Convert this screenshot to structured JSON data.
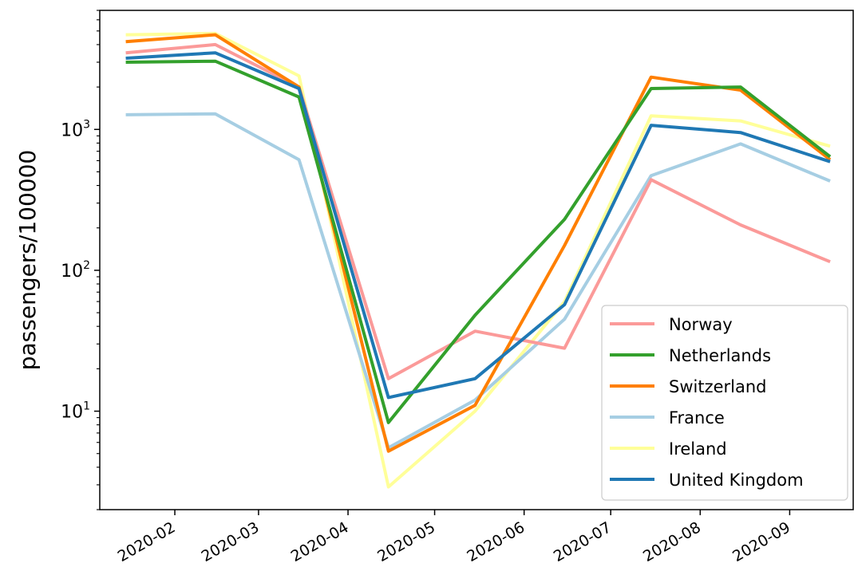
{
  "chart_data": {
    "type": "line",
    "title": "",
    "xlabel": "",
    "ylabel": "passengers/100000",
    "yscale": "log",
    "ylim": [
      2,
      7000
    ],
    "xlim": [
      "2020-01-06",
      "2020-09-23"
    ],
    "grid": false,
    "legend_position": "lower-right",
    "x": [
      "2020-01-15",
      "2020-02-15",
      "2020-03-15",
      "2020-04-15",
      "2020-05-15",
      "2020-06-15",
      "2020-07-15",
      "2020-08-15",
      "2020-09-15"
    ],
    "x_ticks": [
      {
        "date": "2020-02-01",
        "label": "2020-02"
      },
      {
        "date": "2020-03-01",
        "label": "2020-03"
      },
      {
        "date": "2020-04-01",
        "label": "2020-04"
      },
      {
        "date": "2020-05-01",
        "label": "2020-05"
      },
      {
        "date": "2020-06-01",
        "label": "2020-06"
      },
      {
        "date": "2020-07-01",
        "label": "2020-07"
      },
      {
        "date": "2020-08-01",
        "label": "2020-08"
      },
      {
        "date": "2020-09-01",
        "label": "2020-09"
      }
    ],
    "y_ticks": [
      {
        "value": 10,
        "base": "10",
        "exp": "1"
      },
      {
        "value": 100,
        "base": "10",
        "exp": "2"
      },
      {
        "value": 1000,
        "base": "10",
        "exp": "3"
      }
    ],
    "series": [
      {
        "name": "Ireland",
        "color": "#ffff99",
        "values": [
          4700,
          4800,
          2400,
          2.9,
          10,
          60,
          1250,
          1150,
          760
        ]
      },
      {
        "name": "France",
        "color": "#a6cee3",
        "values": [
          1270,
          1290,
          610,
          5.5,
          12,
          45,
          470,
          790,
          430
        ]
      },
      {
        "name": "Norway",
        "color": "#fb9a99",
        "values": [
          3500,
          4000,
          2000,
          17,
          37,
          28,
          440,
          210,
          115
        ]
      },
      {
        "name": "Switzerland",
        "color": "#ff7f00",
        "values": [
          4200,
          4700,
          2000,
          5.2,
          11,
          150,
          2350,
          1900,
          610
        ]
      },
      {
        "name": "Netherlands",
        "color": "#33a02c",
        "values": [
          3000,
          3050,
          1700,
          8.3,
          48,
          230,
          1950,
          2000,
          640
        ]
      },
      {
        "name": "United Kingdom",
        "color": "#1f78b4",
        "values": [
          3200,
          3500,
          1950,
          12.5,
          17,
          57,
          1070,
          950,
          590
        ]
      }
    ],
    "legend_order": [
      "Norway",
      "Netherlands",
      "Switzerland",
      "France",
      "Ireland",
      "United Kingdom"
    ]
  }
}
